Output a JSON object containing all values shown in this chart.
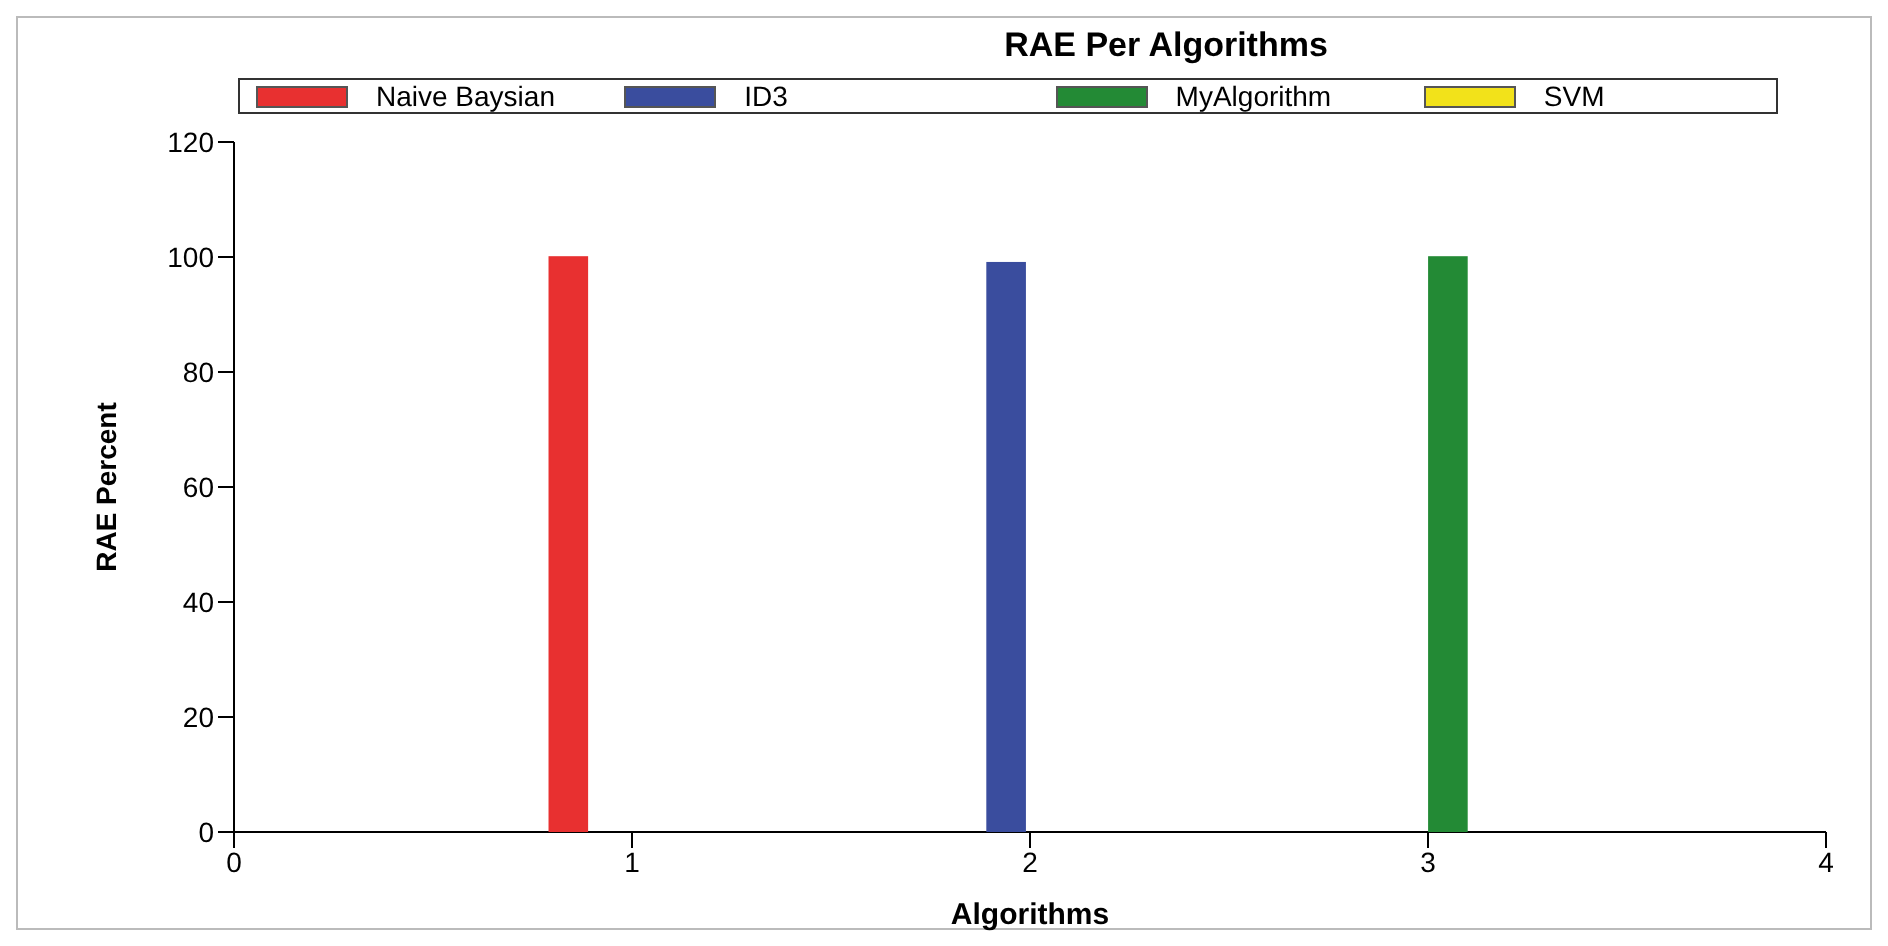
{
  "chart_data": {
    "type": "bar",
    "title": "RAE Per Algorithms",
    "xlabel": "Algorithms",
    "ylabel": "RAE Percent",
    "series": [
      {
        "name": "Naive Baysian",
        "color": "#e83030",
        "x": [
          0.84
        ],
        "values": [
          100
        ]
      },
      {
        "name": "ID3",
        "color": "#3a4d9e",
        "x": [
          1.94
        ],
        "values": [
          99
        ]
      },
      {
        "name": "MyAlgorithm",
        "color": "#238a35",
        "x": [
          3.05
        ],
        "values": [
          100
        ]
      },
      {
        "name": "SVM",
        "color": "#f2e21a"
      }
    ],
    "xlim": [
      0,
      4
    ],
    "xticks": [
      0,
      1,
      2,
      3,
      4
    ],
    "ylim": [
      0,
      120
    ],
    "yticks": [
      0,
      20,
      40,
      60,
      80,
      100,
      120
    ],
    "legend": "top"
  }
}
